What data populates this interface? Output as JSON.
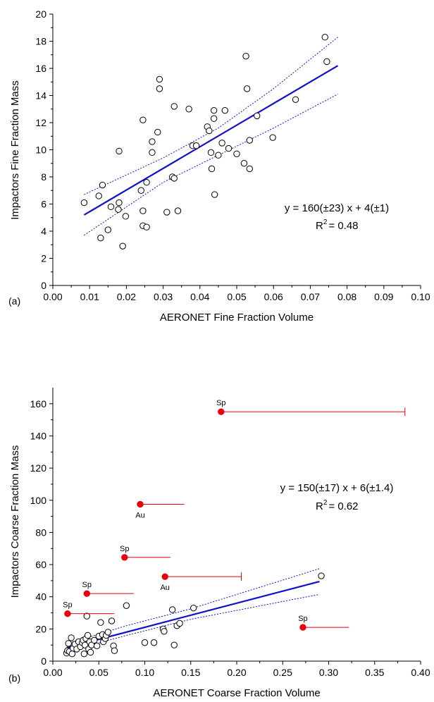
{
  "colors": {
    "fit": "#1010cc",
    "outlier": "#e8000b",
    "axis": "#000000",
    "point": "#000000"
  },
  "chart_data": [
    {
      "type": "scatter",
      "panel_label": "(a)",
      "xlabel": "AERONET Fine Fraction Volume",
      "ylabel": "Impactors Fine Fraction Mass",
      "xlim": [
        0,
        0.1
      ],
      "ylim": [
        0,
        20
      ],
      "xticks": [
        "0.00",
        "0.01",
        "0.02",
        "0.03",
        "0.04",
        "0.05",
        "0.06",
        "0.07",
        "0.08",
        "0.09",
        "0.10"
      ],
      "xtick_values": [
        0,
        0.01,
        0.02,
        0.03,
        0.04,
        0.05,
        0.06,
        0.07,
        0.08,
        0.09,
        0.1
      ],
      "yticks": [
        "0",
        "2",
        "4",
        "6",
        "8",
        "10",
        "12",
        "14",
        "16",
        "18",
        "20"
      ],
      "ytick_values": [
        0,
        2,
        4,
        6,
        8,
        10,
        12,
        14,
        16,
        18,
        20
      ],
      "equation": "y = 160(±23) x + 4(±1)",
      "r2_label": "R",
      "r2_sup": "2",
      "r2_value": "= 0.48",
      "fit": {
        "x": [
          0.0085,
          0.0775
        ],
        "y": [
          5.2,
          16.2
        ]
      },
      "ci_upper": {
        "x": [
          0.0085,
          0.03,
          0.045,
          0.06,
          0.0775
        ],
        "y": [
          6.7,
          9.4,
          11.6,
          14.5,
          18.3
        ]
      },
      "ci_lower": {
        "x": [
          0.0085,
          0.03,
          0.045,
          0.06,
          0.0775
        ],
        "y": [
          3.7,
          7.6,
          9.6,
          11.6,
          14.1
        ]
      },
      "points": [
        [
          0.0085,
          6.1
        ],
        [
          0.0125,
          6.6
        ],
        [
          0.0135,
          7.4
        ],
        [
          0.013,
          3.5
        ],
        [
          0.015,
          4.1
        ],
        [
          0.0158,
          5.8
        ],
        [
          0.0178,
          5.6
        ],
        [
          0.018,
          6.1
        ],
        [
          0.018,
          9.9
        ],
        [
          0.019,
          2.9
        ],
        [
          0.0198,
          5.1
        ],
        [
          0.024,
          7.0
        ],
        [
          0.0245,
          5.5
        ],
        [
          0.0245,
          4.4
        ],
        [
          0.0255,
          4.3
        ],
        [
          0.0245,
          12.2
        ],
        [
          0.0255,
          7.6
        ],
        [
          0.027,
          9.8
        ],
        [
          0.027,
          10.6
        ],
        [
          0.0285,
          11.3
        ],
        [
          0.029,
          14.5
        ],
        [
          0.029,
          15.2
        ],
        [
          0.031,
          5.4
        ],
        [
          0.0325,
          8.0
        ],
        [
          0.033,
          7.9
        ],
        [
          0.033,
          13.2
        ],
        [
          0.034,
          5.5
        ],
        [
          0.037,
          13.0
        ],
        [
          0.038,
          10.3
        ],
        [
          0.039,
          10.3
        ],
        [
          0.042,
          11.7
        ],
        [
          0.0425,
          11.4
        ],
        [
          0.043,
          9.8
        ],
        [
          0.0432,
          8.6
        ],
        [
          0.0438,
          12.3
        ],
        [
          0.0438,
          12.9
        ],
        [
          0.044,
          6.7
        ],
        [
          0.045,
          9.6
        ],
        [
          0.046,
          10.5
        ],
        [
          0.0468,
          12.9
        ],
        [
          0.0478,
          10.1
        ],
        [
          0.05,
          9.7
        ],
        [
          0.052,
          9.0
        ],
        [
          0.0525,
          16.9
        ],
        [
          0.0528,
          14.5
        ],
        [
          0.0535,
          10.7
        ],
        [
          0.0535,
          8.6
        ],
        [
          0.0555,
          12.5
        ],
        [
          0.0598,
          10.9
        ],
        [
          0.066,
          13.7
        ],
        [
          0.074,
          18.3
        ],
        [
          0.0745,
          16.5
        ]
      ]
    },
    {
      "type": "scatter",
      "panel_label": "(b)",
      "xlabel": "AERONET Coarse Fraction Volume",
      "ylabel": "Impactors Coarse Fraction Mass",
      "xlim": [
        0,
        0.4
      ],
      "ylim": [
        0,
        170
      ],
      "xticks": [
        "0.00",
        "0.05",
        "0.10",
        "0.15",
        "0.20",
        "0.25",
        "0.30",
        "0.35",
        "0.40"
      ],
      "xtick_values": [
        0,
        0.05,
        0.1,
        0.15,
        0.2,
        0.25,
        0.3,
        0.35,
        0.4
      ],
      "yticks": [
        "0",
        "20",
        "40",
        "60",
        "80",
        "100",
        "120",
        "140",
        "160"
      ],
      "ytick_values": [
        0,
        20,
        40,
        60,
        80,
        100,
        120,
        140,
        160
      ],
      "equation": "y = 150(±17) x + 6(±1.4)",
      "r2_label": "R",
      "r2_sup": "2",
      "r2_value": "= 0.62",
      "fit": {
        "x": [
          0.015,
          0.29
        ],
        "y": [
          8.3,
          49.5
        ]
      },
      "ci_upper": {
        "x": [
          0.015,
          0.08,
          0.15,
          0.29
        ],
        "y": [
          10.8,
          22.0,
          32.5,
          57.5
        ]
      },
      "ci_lower": {
        "x": [
          0.015,
          0.08,
          0.15,
          0.29
        ],
        "y": [
          5.8,
          16.0,
          26.0,
          41.5
        ]
      },
      "points": [
        [
          0.015,
          5.0
        ],
        [
          0.016,
          6.5
        ],
        [
          0.017,
          11.0
        ],
        [
          0.018,
          6.0
        ],
        [
          0.02,
          14.5
        ],
        [
          0.021,
          4.5
        ],
        [
          0.022,
          8.0
        ],
        [
          0.024,
          10.5
        ],
        [
          0.026,
          7.5
        ],
        [
          0.028,
          12.0
        ],
        [
          0.03,
          9.0
        ],
        [
          0.032,
          11.5
        ],
        [
          0.033,
          13.0
        ],
        [
          0.034,
          4.5
        ],
        [
          0.035,
          10.0
        ],
        [
          0.036,
          14.0
        ],
        [
          0.037,
          28.0
        ],
        [
          0.038,
          16.0
        ],
        [
          0.039,
          7.5
        ],
        [
          0.04,
          12.0
        ],
        [
          0.041,
          5.5
        ],
        [
          0.042,
          10.0
        ],
        [
          0.045,
          13.0
        ],
        [
          0.048,
          9.5
        ],
        [
          0.05,
          15.5
        ],
        [
          0.052,
          24.0
        ],
        [
          0.054,
          16.5
        ],
        [
          0.055,
          12.0
        ],
        [
          0.057,
          14.0
        ],
        [
          0.058,
          16.0
        ],
        [
          0.06,
          18.0
        ],
        [
          0.064,
          25.0
        ],
        [
          0.066,
          9.5
        ],
        [
          0.067,
          6.5
        ],
        [
          0.08,
          34.5
        ],
        [
          0.1,
          11.5
        ],
        [
          0.11,
          11.5
        ],
        [
          0.12,
          20.0
        ],
        [
          0.121,
          18.5
        ],
        [
          0.13,
          32.0
        ],
        [
          0.132,
          10.0
        ],
        [
          0.135,
          22.0
        ],
        [
          0.138,
          23.5
        ],
        [
          0.153,
          33.0
        ],
        [
          0.292,
          53.0
        ]
      ],
      "outliers": [
        {
          "label": "Sp",
          "x": 0.183,
          "y": 155,
          "x_end": 0.383,
          "cap": true,
          "label_pos": "above"
        },
        {
          "label": "Au",
          "x": 0.095,
          "y": 97.5,
          "x_end": 0.143,
          "cap": false,
          "label_pos": "below"
        },
        {
          "label": "Sp",
          "x": 0.078,
          "y": 64.5,
          "x_end": 0.128,
          "cap": false,
          "label_pos": "above"
        },
        {
          "label": "Au",
          "x": 0.122,
          "y": 52.5,
          "x_end": 0.205,
          "cap": true,
          "label_pos": "below"
        },
        {
          "label": "Sp",
          "x": 0.037,
          "y": 42,
          "x_end": 0.088,
          "cap": false,
          "label_pos": "above"
        },
        {
          "label": "Sp",
          "x": 0.016,
          "y": 29.5,
          "x_end": 0.067,
          "cap": false,
          "label_pos": "above"
        },
        {
          "label": "Sp",
          "x": 0.272,
          "y": 21,
          "x_end": 0.322,
          "cap": false,
          "label_pos": "above"
        }
      ]
    }
  ]
}
